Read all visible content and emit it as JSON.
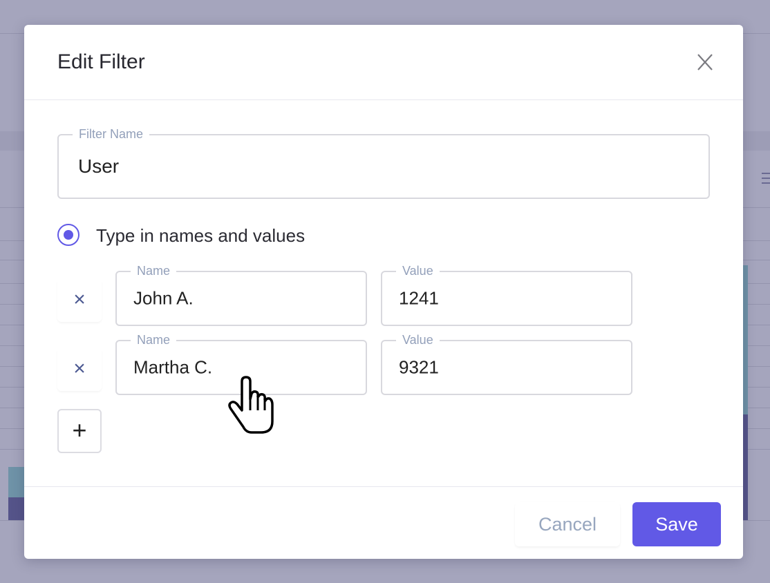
{
  "modal": {
    "title": "Edit Filter",
    "close_icon": "close-icon",
    "filter_name": {
      "label": "Filter Name",
      "value": "User"
    },
    "mode_option": {
      "label": "Type in names and values",
      "selected": true
    },
    "rows": [
      {
        "name_label": "Name",
        "name": "John A.",
        "value_label": "Value",
        "value": "1241"
      },
      {
        "name_label": "Name",
        "name": "Martha C.",
        "value_label": "Value",
        "value": "9321"
      }
    ],
    "remove_icon": "×",
    "add_icon": "+",
    "cancel_label": "Cancel",
    "save_label": "Save"
  },
  "colors": {
    "accent": "#6159e6",
    "overlay": "#a5a5bd",
    "label": "#93a0ba"
  }
}
